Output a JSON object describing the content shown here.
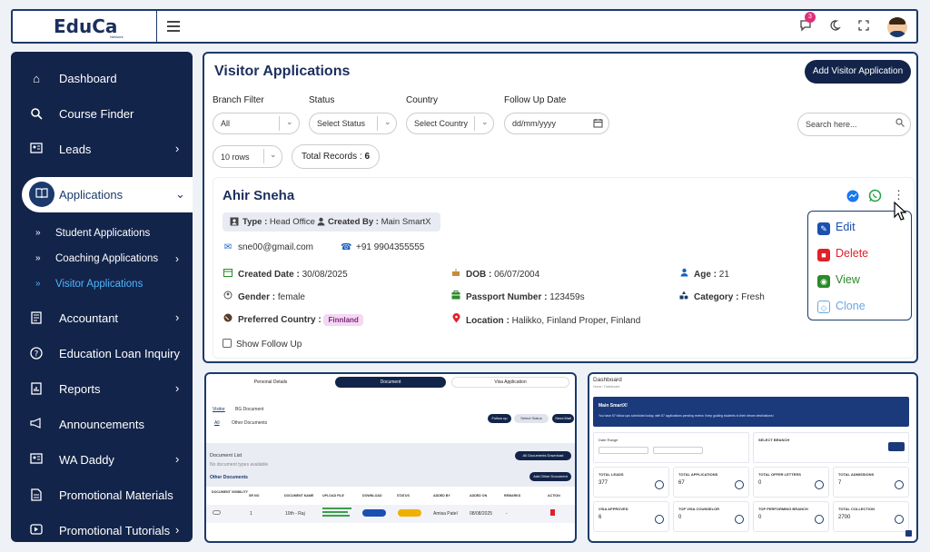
{
  "header": {
    "logo_text": "EduCa",
    "logo_sub": "Network",
    "notification_count": "3",
    "icons": [
      "chat-icon",
      "moon-icon",
      "fullscreen-icon",
      "user-avatar"
    ]
  },
  "sidebar": {
    "items": [
      {
        "label": "Dashboard",
        "icon": "home-icon"
      },
      {
        "label": "Course Finder",
        "icon": "search-icon"
      },
      {
        "label": "Leads",
        "icon": "id-card-icon"
      },
      {
        "label": "Applications",
        "icon": "book-icon"
      },
      {
        "label": "Accountant",
        "icon": "ledger-icon"
      },
      {
        "label": "Education Loan Inquiry",
        "icon": "help-icon"
      },
      {
        "label": "Reports",
        "icon": "report-icon"
      },
      {
        "label": "Announcements",
        "icon": "megaphone-icon"
      },
      {
        "label": "WA Daddy",
        "icon": "id-card-icon"
      },
      {
        "label": "Promotional Materials",
        "icon": "document-icon"
      },
      {
        "label": "Promotional Tutorials",
        "icon": "play-icon"
      }
    ],
    "subitems": [
      {
        "label": "Student Applications"
      },
      {
        "label": "Coaching Applications"
      },
      {
        "label": "Visitor Applications"
      }
    ],
    "colors": {
      "background": "#13244a",
      "active_sub": "#4fb6ff"
    }
  },
  "main": {
    "title": "Visitor Applications",
    "add_button": "Add Visitor Application",
    "filters": {
      "branch_label": "Branch Filter",
      "branch_value": "All",
      "status_label": "Status",
      "status_value": "Select Status",
      "country_label": "Country",
      "country_value": "Select Country",
      "followup_label": "Follow Up Date",
      "followup_placeholder": "dd/mm/yyyy",
      "search_placeholder": "Search here..."
    },
    "rows_value": "10 rows",
    "total_label": "Total Records : ",
    "total_value": "6",
    "card": {
      "name": "Ahir Sneha",
      "type_label": "Type :",
      "type_value": "Head Office",
      "created_by_label": "Created By :",
      "created_by_value": "Main SmartX",
      "email": "sne00@gmail.com",
      "phone": "+91 9904355555",
      "created_date_label": "Created Date :",
      "created_date_value": "30/08/2025",
      "dob_label": "DOB :",
      "dob_value": "06/07/2004",
      "age_label": "Age :",
      "age_value": "21",
      "gender_label": "Gender :",
      "gender_value": "female",
      "passport_label": "Passport Number :",
      "passport_value": "123459s",
      "category_label": "Category :",
      "category_value": "Fresh",
      "country_label": "Preferred Country :",
      "country_value": "Finnland",
      "location_label": "Location :",
      "location_value": "Halikko, Finland Proper, Finland",
      "followup_label": "Show Follow Up"
    },
    "action_menu": [
      {
        "label": "Edit",
        "color": "#1b4fb0"
      },
      {
        "label": "Delete",
        "color": "#e0202a"
      },
      {
        "label": "View",
        "color": "#2a8a2a"
      },
      {
        "label": "Clone",
        "color": "#6ba7e0"
      }
    ]
  },
  "thumb_document": {
    "tabs": [
      "Personal Details",
      "Document",
      "Visa Application"
    ],
    "subtabs": [
      "Visitor",
      "BG Document"
    ],
    "filters": [
      "All",
      "Other Documents"
    ],
    "buttons": [
      "Follow up",
      "Select Status",
      "Send Mail"
    ],
    "list_title": "Document List",
    "list_sub": "No document types available",
    "other_docs": "Other Documents",
    "download_all": "All Documents Download",
    "add_other": "Add Other Document",
    "columns": [
      "DOCUMENT VISIBILITY",
      "SR NO",
      "DOCUMENT NAME",
      "UPLOAD FILE",
      "DOWNLOAD",
      "STATUS",
      "ADDED BY",
      "ADDED ON",
      "REMARKS",
      "ACTION"
    ],
    "row": [
      "",
      "1",
      "10th - Raj",
      "",
      "",
      "",
      "Amisa Patel",
      "08/08/2025",
      "-",
      ""
    ]
  },
  "thumb_dashboard": {
    "title": "Dashboard",
    "breadcrumb": "Home  /  Dashboard",
    "banner_title": "Main SmartX!",
    "banner_text": "You have 57 follow-ups scheduled today, with 67 applications pending review. Keep guiding students to their dream destinations!",
    "date_range": "Date Range",
    "select_branch": "SELECT BRANCH",
    "stats": [
      {
        "label": "TOTAL LEADS",
        "value": "377"
      },
      {
        "label": "TOTAL APPLICATIONS",
        "value": "67"
      },
      {
        "label": "TOTAL OFFER LETTERS",
        "value": "0"
      },
      {
        "label": "TOTAL ADMISSIONS",
        "value": "7"
      },
      {
        "label": "VISA APPROVED",
        "value": "6"
      },
      {
        "label": "TOP VISA COUNSELOR",
        "value": "0"
      },
      {
        "label": "TOP PERFORMING BRANCH",
        "value": "0"
      },
      {
        "label": "TOTAL COLLECTION",
        "value": "2700"
      }
    ]
  }
}
